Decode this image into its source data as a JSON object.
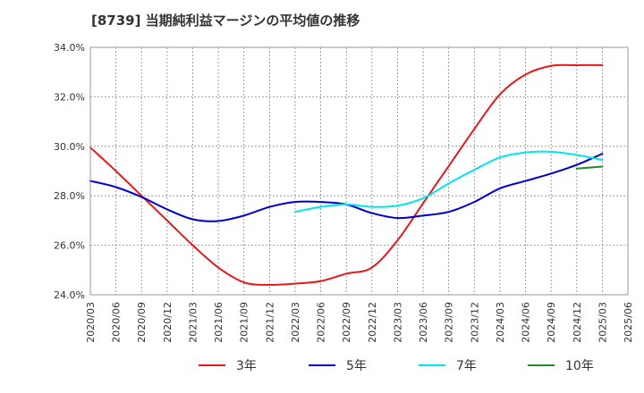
{
  "title": "[8739]  当期純利益マージンの平均値の推移",
  "chart_data": {
    "type": "line",
    "title": "[8739]  当期純利益マージンの平均値の推移",
    "xlabel": "",
    "ylabel": "",
    "ylim": [
      24.0,
      34.0
    ],
    "y_ticks": [
      "24.0%",
      "26.0%",
      "28.0%",
      "30.0%",
      "32.0%",
      "34.0%"
    ],
    "x_ticks": [
      "2020/03",
      "2020/06",
      "2020/09",
      "2020/12",
      "2021/03",
      "2021/06",
      "2021/09",
      "2021/12",
      "2022/03",
      "2022/06",
      "2022/09",
      "2022/12",
      "2023/03",
      "2023/06",
      "2023/09",
      "2023/12",
      "2024/03",
      "2024/06",
      "2024/09",
      "2024/12",
      "2025/03",
      "2025/06"
    ],
    "grid": true,
    "legend_position": "bottom",
    "series": [
      {
        "name": "3年",
        "color": "#e31a1c",
        "x": [
          "2020/03",
          "2020/06",
          "2020/09",
          "2020/12",
          "2021/03",
          "2021/06",
          "2021/09",
          "2021/12",
          "2022/03",
          "2022/06",
          "2022/09",
          "2022/12",
          "2023/03",
          "2023/06",
          "2023/09",
          "2023/12",
          "2024/03",
          "2024/06",
          "2024/09",
          "2024/12",
          "2025/03"
        ],
        "values": [
          29.95,
          29.0,
          28.0,
          27.0,
          26.0,
          25.1,
          24.5,
          24.4,
          24.45,
          24.55,
          24.85,
          25.1,
          26.2,
          27.7,
          29.2,
          30.7,
          32.1,
          32.9,
          33.25,
          33.28,
          33.28
        ]
      },
      {
        "name": "5年",
        "color": "#0000cc",
        "x": [
          "2020/03",
          "2020/06",
          "2020/09",
          "2020/12",
          "2021/03",
          "2021/06",
          "2021/09",
          "2021/12",
          "2022/03",
          "2022/06",
          "2022/09",
          "2022/12",
          "2023/03",
          "2023/06",
          "2023/09",
          "2023/12",
          "2024/03",
          "2024/06",
          "2024/09",
          "2024/12",
          "2025/03"
        ],
        "values": [
          28.6,
          28.35,
          27.95,
          27.45,
          27.05,
          26.98,
          27.2,
          27.55,
          27.75,
          27.75,
          27.65,
          27.3,
          27.1,
          27.2,
          27.35,
          27.75,
          28.3,
          28.6,
          28.9,
          29.25,
          29.7
        ]
      },
      {
        "name": "7年",
        "color": "#00e5ee",
        "x": [
          "2022/03",
          "2022/06",
          "2022/09",
          "2022/12",
          "2023/03",
          "2023/06",
          "2023/09",
          "2023/12",
          "2024/03",
          "2024/06",
          "2024/09",
          "2024/12",
          "2025/03"
        ],
        "values": [
          27.35,
          27.55,
          27.65,
          27.55,
          27.6,
          27.9,
          28.5,
          29.05,
          29.55,
          29.75,
          29.78,
          29.65,
          29.45
        ]
      },
      {
        "name": "10年",
        "color": "#228b22",
        "x": [
          "2024/12",
          "2025/03"
        ],
        "values": [
          29.1,
          29.18
        ]
      }
    ]
  }
}
